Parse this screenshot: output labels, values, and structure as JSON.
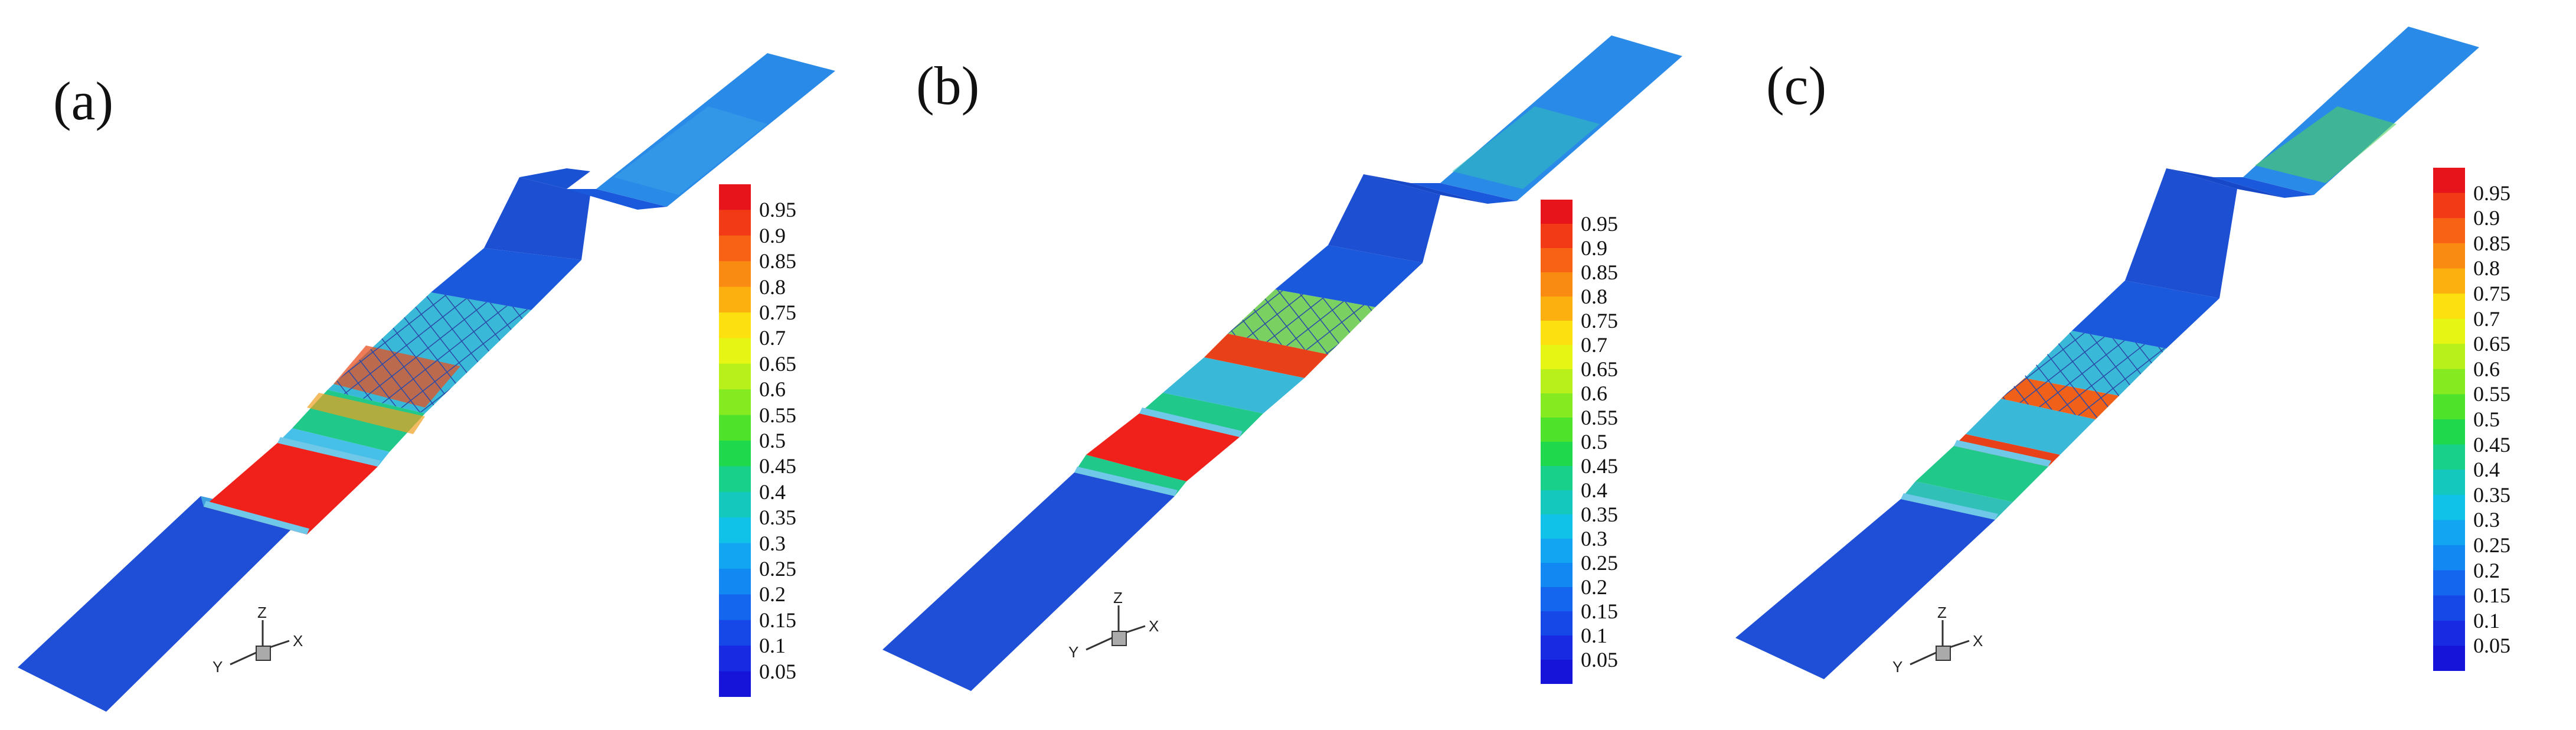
{
  "panels": [
    {
      "label": "(a)"
    },
    {
      "label": "(b)"
    },
    {
      "label": "(c)"
    }
  ],
  "colorbar": {
    "ticks": [
      "0.95",
      "0.9",
      "0.85",
      "0.8",
      "0.75",
      "0.7",
      "0.65",
      "0.6",
      "0.55",
      "0.5",
      "0.45",
      "0.4",
      "0.35",
      "0.3",
      "0.25",
      "0.2",
      "0.15",
      "0.1",
      "0.05"
    ],
    "colors": [
      "#e8141b",
      "#f23a17",
      "#f76214",
      "#f98a12",
      "#fbb010",
      "#fde010",
      "#e6f514",
      "#b7f01a",
      "#86ea20",
      "#4fe22a",
      "#20d84c",
      "#18d08a",
      "#14c8be",
      "#10c2e8",
      "#12a6f2",
      "#1288f2",
      "#1466ee",
      "#1648e8",
      "#182ae2",
      "#1614d8"
    ]
  },
  "axes_triad": {
    "z": "Z",
    "y": "Y",
    "x": "X"
  }
}
